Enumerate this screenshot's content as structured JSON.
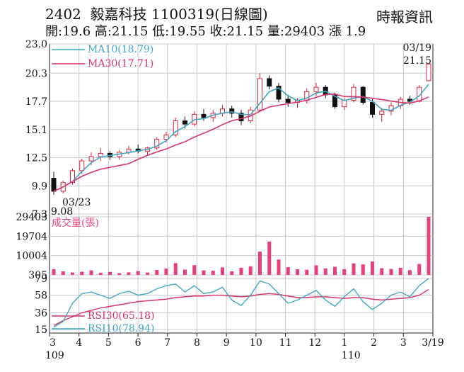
{
  "header": {
    "code": "2402",
    "name": "毅嘉科技",
    "date": "1100319",
    "period": "(日線圖)",
    "quote": "開:19.6 高:21.15 低:19.55 收:21.15 量:29403 漲 1.9",
    "source": "時報資訊"
  },
  "chart_data": [
    {
      "type": "candlestick",
      "ylim": [
        7.3,
        23.0
      ],
      "y_ticks": [
        "23.0",
        "20.3",
        "17.7",
        "15.1",
        "12.5",
        "9.9",
        "7.3"
      ],
      "y_tick_values": [
        23.0,
        20.3,
        17.7,
        15.1,
        12.5,
        9.9,
        7.3
      ],
      "legend": [
        {
          "name": "MA10(18.79)",
          "color": "#3fa7c4"
        },
        {
          "name": "MA30(17.71)",
          "color": "#d9336a"
        }
      ],
      "annotations": {
        "high_date": "03/19",
        "high_value": "21.15",
        "low_date": "03/23",
        "low_value": "9.08"
      },
      "ohlc_sample": [
        [
          10.6,
          11.2,
          9.08,
          9.4
        ],
        [
          9.4,
          10.4,
          9.2,
          10.2
        ],
        [
          10.2,
          11.5,
          10.0,
          11.3
        ],
        [
          11.3,
          12.4,
          11.0,
          12.2
        ],
        [
          12.2,
          13.0,
          11.8,
          12.6
        ],
        [
          12.6,
          13.4,
          12.2,
          12.9
        ],
        [
          12.9,
          13.1,
          12.3,
          12.6
        ],
        [
          12.6,
          13.2,
          12.3,
          13.0
        ],
        [
          13.0,
          13.6,
          12.8,
          13.3
        ],
        [
          13.3,
          13.7,
          12.9,
          13.1
        ],
        [
          13.1,
          13.5,
          12.7,
          13.4
        ],
        [
          13.4,
          14.4,
          13.2,
          14.2
        ],
        [
          14.2,
          14.9,
          13.9,
          14.6
        ],
        [
          14.6,
          16.2,
          14.4,
          15.9
        ],
        [
          15.9,
          16.3,
          15.2,
          15.6
        ],
        [
          15.6,
          16.8,
          15.4,
          16.5
        ],
        [
          16.5,
          17.0,
          15.9,
          16.2
        ],
        [
          16.2,
          16.9,
          15.8,
          16.6
        ],
        [
          16.6,
          17.4,
          16.3,
          17.0
        ],
        [
          17.0,
          17.3,
          16.2,
          16.6
        ],
        [
          16.6,
          16.9,
          15.5,
          15.9
        ],
        [
          15.9,
          17.2,
          15.7,
          16.9
        ],
        [
          16.9,
          20.3,
          16.7,
          19.8
        ],
        [
          19.8,
          20.1,
          18.8,
          19.1
        ],
        [
          19.1,
          19.4,
          17.6,
          17.9
        ],
        [
          17.9,
          18.3,
          17.2,
          17.6
        ],
        [
          17.6,
          18.0,
          17.1,
          17.8
        ],
        [
          17.8,
          18.9,
          17.5,
          18.6
        ],
        [
          18.6,
          19.4,
          18.2,
          19.0
        ],
        [
          19.0,
          19.2,
          18.0,
          18.3
        ],
        [
          18.3,
          18.5,
          17.0,
          17.2
        ],
        [
          17.2,
          18.0,
          16.9,
          17.8
        ],
        [
          17.8,
          19.3,
          17.6,
          19.0
        ],
        [
          19.0,
          19.1,
          17.4,
          17.6
        ],
        [
          17.6,
          17.9,
          16.2,
          16.5
        ],
        [
          16.5,
          17.1,
          15.8,
          16.8
        ],
        [
          16.8,
          17.6,
          16.4,
          17.3
        ],
        [
          17.3,
          18.1,
          17.0,
          17.9
        ],
        [
          17.9,
          18.2,
          17.4,
          17.7
        ],
        [
          17.7,
          19.2,
          17.6,
          19.0
        ],
        [
          19.6,
          21.15,
          19.55,
          21.15
        ]
      ]
    },
    {
      "type": "bar",
      "title": "成交量(張)",
      "color": "#e8417a",
      "ylim": [
        305,
        29403
      ],
      "y_ticks": [
        "29403",
        "19704",
        "10004",
        "305"
      ],
      "y_tick_values": [
        29403,
        19704,
        10004,
        305
      ],
      "values_sample": [
        3200,
        2100,
        1500,
        1900,
        2600,
        1400,
        1800,
        1200,
        1600,
        2200,
        1500,
        2800,
        3500,
        6200,
        3000,
        5200,
        2600,
        2400,
        4100,
        2100,
        3900,
        4600,
        12000,
        17000,
        8000,
        4200,
        3100,
        2900,
        5100,
        3600,
        4400,
        3200,
        6100,
        5600,
        7000,
        3700,
        3300,
        3900,
        2700,
        5800,
        29403
      ]
    },
    {
      "type": "line",
      "ylim": [
        15,
        79
      ],
      "y_ticks": [
        "79",
        "58",
        "36",
        "15"
      ],
      "y_tick_values": [
        79,
        58,
        36,
        15
      ],
      "series": [
        {
          "name": "RSI30(65.18)",
          "color": "#d9336a",
          "values": [
            20,
            26,
            31,
            36,
            39,
            42,
            44,
            46,
            48,
            50,
            51,
            52,
            53,
            55,
            56,
            57,
            57,
            58,
            58,
            57,
            56,
            57,
            59,
            60,
            59,
            57,
            55,
            55,
            56,
            56,
            55,
            54,
            55,
            55,
            53,
            52,
            53,
            54,
            55,
            58,
            65.18
          ]
        },
        {
          "name": "RSI10(78.94)",
          "color": "#3fa7c4",
          "values": [
            18,
            25,
            48,
            60,
            62,
            58,
            54,
            60,
            63,
            58,
            60,
            66,
            70,
            72,
            62,
            70,
            60,
            62,
            68,
            52,
            45,
            58,
            76,
            72,
            60,
            48,
            52,
            58,
            64,
            52,
            44,
            56,
            66,
            50,
            40,
            48,
            58,
            62,
            56,
            70,
            78.94
          ]
        }
      ]
    }
  ],
  "x_axis": {
    "months": [
      "3",
      "4",
      "5",
      "6",
      "7",
      "8",
      "9",
      "10",
      "11",
      "12",
      "1",
      "2",
      "3",
      "3/19"
    ],
    "years": [
      "109",
      "110"
    ]
  }
}
